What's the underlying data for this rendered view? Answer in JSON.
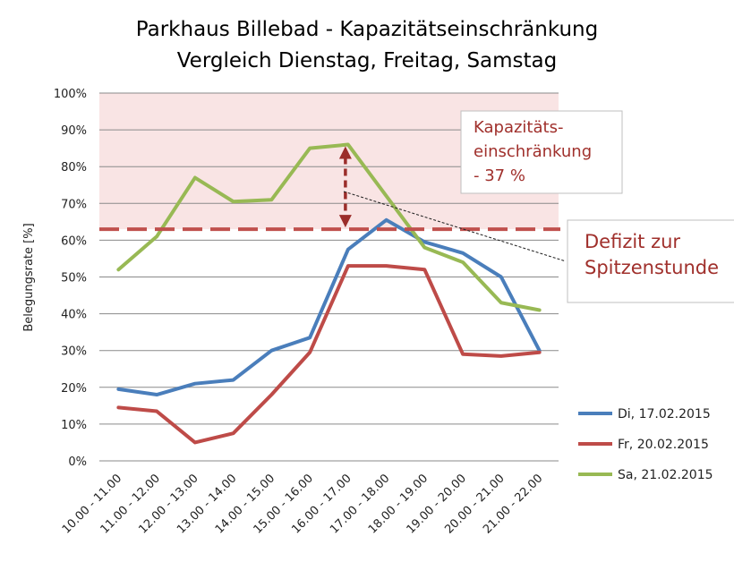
{
  "chart_data": {
    "type": "line",
    "title": "Parkhaus Billebad - Kapazitätseinschränkung",
    "subtitle": "Vergleich Dienstag, Freitag, Samstag",
    "ylabel": "Belegungsrate [%]",
    "xlabel": "",
    "ylim": [
      0,
      100
    ],
    "ytick_labels": [
      "0%",
      "10%",
      "20%",
      "30%",
      "40%",
      "50%",
      "60%",
      "70%",
      "80%",
      "90%",
      "100%"
    ],
    "categories": [
      "10.00 - 11.00",
      "11.00 - 12.00",
      "12.00 - 13.00",
      "13.00 - 14.00",
      "14.00 - 15.00",
      "15.00 - 16.00",
      "16.00 - 17.00",
      "17.00 - 18.00",
      "18.00 - 19.00",
      "19.00 - 20.00",
      "20.00 - 21.00",
      "21.00 - 22.00"
    ],
    "series": [
      {
        "name": "Di, 17.02.2015",
        "color": "#4a7ebb",
        "values": [
          19.5,
          18,
          21,
          22,
          30,
          33.5,
          57.5,
          65.5,
          59.5,
          56.5,
          50,
          30
        ]
      },
      {
        "name": "Fr, 20.02.2015",
        "color": "#be4b48",
        "values": [
          14.5,
          13.5,
          5,
          7.5,
          18,
          29.5,
          53,
          53,
          52,
          29,
          28.5,
          29.5
        ]
      },
      {
        "name": "Sa, 21.02.2015",
        "color": "#98b954",
        "values": [
          52,
          61,
          77,
          70.5,
          71,
          85,
          86,
          72,
          58,
          54,
          43,
          41
        ]
      }
    ],
    "legend_position": "right",
    "grid": true,
    "capacity_limit": 63,
    "capacity_band": [
      63,
      100
    ],
    "annotations": {
      "capacity_box": [
        "Kapazitäts-",
        "einschränkung",
        "- 37 %"
      ],
      "deficit_box": [
        "Defizit zur",
        "Spitzenstunde"
      ]
    },
    "colors": {
      "band": "#f9e4e4",
      "limit_line": "#c0504d",
      "arrow": "#9b2d2a",
      "annotation_text": "#a0302c",
      "gridline": "#8a8a8a"
    }
  }
}
